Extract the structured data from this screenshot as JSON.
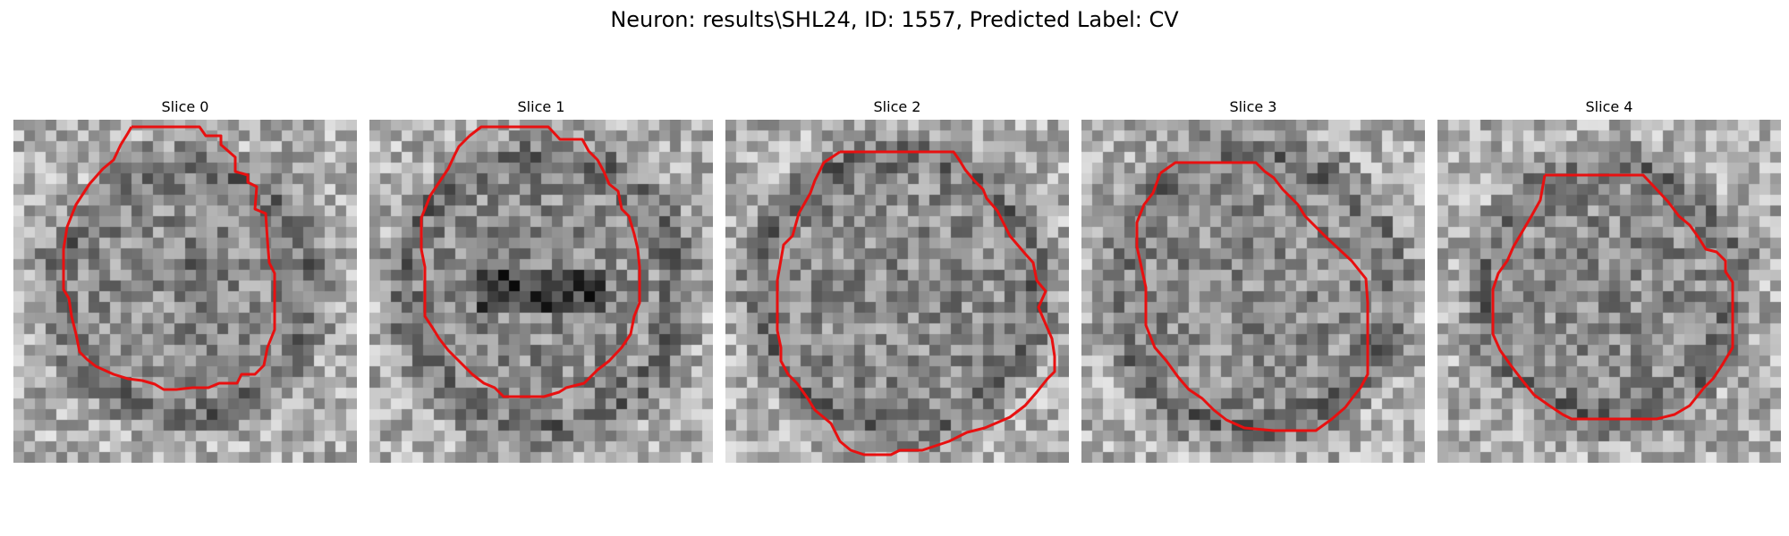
{
  "figure": {
    "title": "Neuron: results\\SHL24, ID: 1557, Predicted Label: CV",
    "contour_color": "#e81010"
  },
  "slices": [
    {
      "label": "Slice 0",
      "dark_center": [
        0.55,
        0.45
      ],
      "ring_radius": 0.36,
      "seed": 11
    },
    {
      "label": "Slice 1",
      "dark_center": [
        0.5,
        0.52
      ],
      "ring_radius": 0.4,
      "seed": 23
    },
    {
      "label": "Slice 2",
      "dark_center": [
        0.5,
        0.55
      ],
      "ring_radius": 0.4,
      "seed": 37
    },
    {
      "label": "Slice 3",
      "dark_center": [
        0.5,
        0.5
      ],
      "ring_radius": 0.4,
      "seed": 49
    },
    {
      "label": "Slice 4",
      "dark_center": [
        0.5,
        0.5
      ],
      "ring_radius": 0.36,
      "seed": 61
    }
  ]
}
